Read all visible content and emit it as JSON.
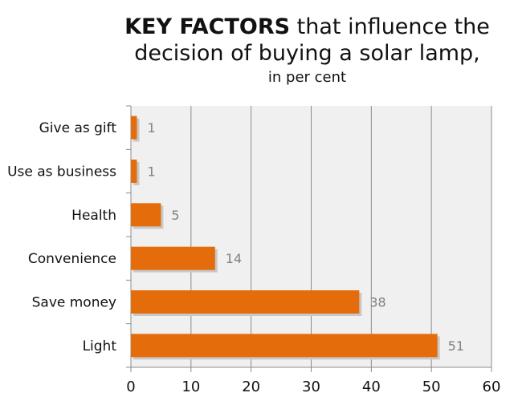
{
  "title": {
    "bold": "KEY FACTORS",
    "rest_line1": " that influence the",
    "line2": "decision of buying a solar lamp,",
    "subtitle": "in per cent"
  },
  "chart_data": {
    "type": "bar",
    "orientation": "horizontal",
    "title": "KEY FACTORS that influence the decision of buying a solar lamp, in per cent",
    "categories": [
      "Give as gift",
      "Use as business",
      "Health",
      "Convenience",
      "Save money",
      "Light"
    ],
    "values": [
      1,
      1,
      5,
      14,
      38,
      51
    ],
    "xlim": [
      0,
      60
    ],
    "xticks": [
      0,
      10,
      20,
      30,
      40,
      50,
      60
    ],
    "xlabel": "",
    "ylabel": "",
    "grid": true,
    "bar_color": "#e46c0a",
    "plot_bg": "#f0f0f0",
    "grid_color": "#8c8c8c"
  }
}
